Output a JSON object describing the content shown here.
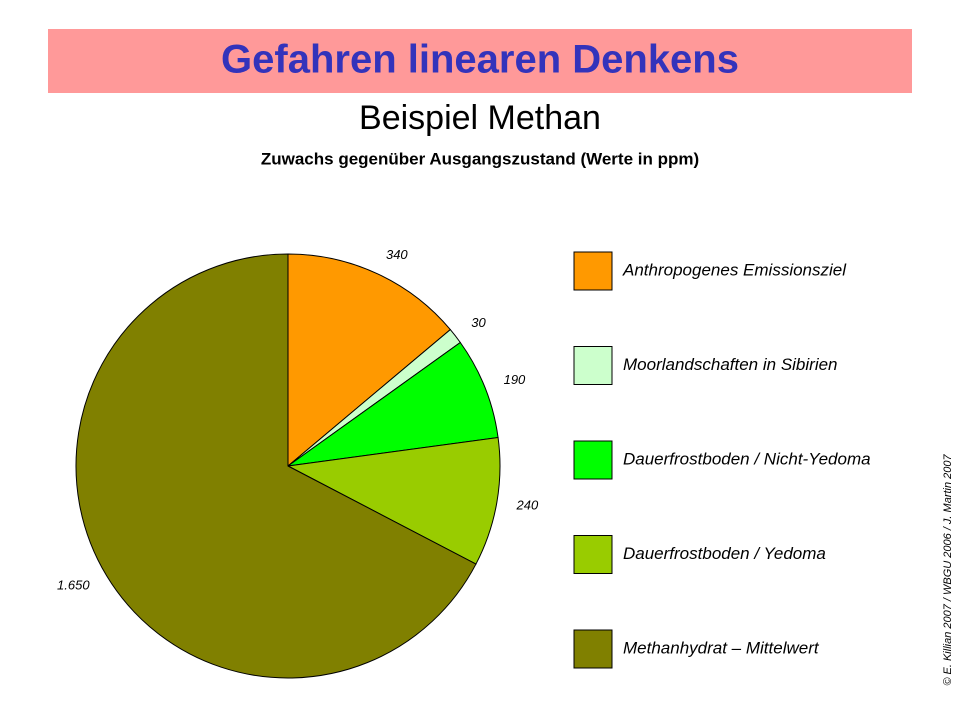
{
  "header": {
    "title": "Gefahren linearen Denkens",
    "subtitle": "Beispiel Methan"
  },
  "credit": "© E. Killian 2007 / WBGU 2006 / J. Martin 2007",
  "chart_data": {
    "type": "pie",
    "title": "Zuwachs gegenüber Ausgangszustand (Werte in ppm)",
    "categories": [
      "Anthropogenes Emissionsziel",
      "Moorlandschaften in Sibirien",
      "Dauerfrostboden / Nicht-Yedoma",
      "Dauerfrostboden / Yedoma",
      "Methanhydrat – Mittelwert"
    ],
    "values": [
      340,
      30,
      190,
      240,
      1650
    ],
    "value_labels": [
      "340",
      "30",
      "190",
      "240",
      "1.650"
    ],
    "colors": [
      "#ff9900",
      "#ccffcc",
      "#00ff00",
      "#99cc00",
      "#808000"
    ],
    "legend": "right"
  }
}
